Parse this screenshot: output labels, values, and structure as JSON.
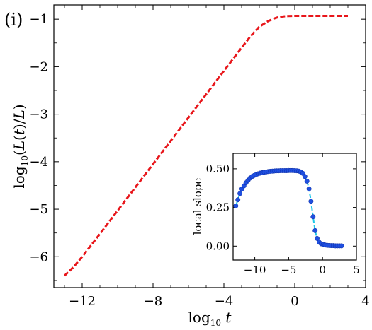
{
  "panel_label": "(i)",
  "chart_data": [
    {
      "type": "line",
      "name": "main",
      "xlabel": "log10 t",
      "ylabel": "log10(L(t)/L)",
      "xlim": [
        -13.6,
        4
      ],
      "ylim": [
        -6.65,
        -0.7
      ],
      "xticks": [
        -12,
        -8,
        -4,
        0,
        4
      ],
      "yticks": [
        -6,
        -5,
        -4,
        -3,
        -2,
        -1
      ],
      "xtick_labels": [
        "−12",
        "−8",
        "−4",
        "0",
        "4"
      ],
      "ytick_labels": [
        "−6",
        "−5",
        "−4",
        "−3",
        "−2",
        "−1"
      ],
      "grid": false,
      "series": [
        {
          "color": "#e8161b",
          "style": "dashed",
          "x": [
            -13.0,
            -12.5,
            -12.0,
            -11.0,
            -10.0,
            -9.0,
            -8.0,
            -7.0,
            -6.0,
            -5.0,
            -4.0,
            -3.0,
            -2.5,
            -2.0,
            -1.5,
            -1.2,
            -1.0,
            -0.8,
            -0.6,
            -0.4,
            -0.2,
            0.0,
            0.5,
            1.0,
            2.0,
            3.0
          ],
          "y": [
            -6.4,
            -6.22,
            -6.0,
            -5.52,
            -5.03,
            -4.54,
            -4.05,
            -3.56,
            -3.07,
            -2.58,
            -2.09,
            -1.6,
            -1.36,
            -1.16,
            -1.04,
            -0.99,
            -0.965,
            -0.95,
            -0.94,
            -0.935,
            -0.932,
            -0.93,
            -0.93,
            -0.93,
            -0.93,
            -0.93
          ]
        }
      ]
    },
    {
      "type": "line",
      "name": "inset",
      "xlabel": "",
      "ylabel": "local slope",
      "xlim": [
        -13.2,
        5
      ],
      "ylim": [
        -0.09,
        0.6
      ],
      "xticks": [
        -10,
        -5,
        0,
        5
      ],
      "yticks": [
        0.0,
        0.25,
        0.5
      ],
      "xtick_labels": [
        "−10",
        "−5",
        "0",
        "5"
      ],
      "ytick_labels": [
        "0.00",
        "0.25",
        "0.50"
      ],
      "grid": false,
      "series": [
        {
          "line_color": "#1ec8e8",
          "marker_color": "#1f4fe0",
          "style": "dashed-with-markers",
          "x": [
            -12.8,
            -12.5,
            -12.2,
            -11.9,
            -11.6,
            -11.3,
            -11.0,
            -10.7,
            -10.4,
            -10.1,
            -9.8,
            -9.5,
            -9.2,
            -8.9,
            -8.6,
            -8.3,
            -8.0,
            -7.7,
            -7.4,
            -7.1,
            -6.8,
            -6.5,
            -6.2,
            -5.9,
            -5.6,
            -5.3,
            -5.0,
            -4.7,
            -4.4,
            -4.1,
            -3.8,
            -3.5,
            -3.2,
            -2.9,
            -2.6,
            -2.3,
            -2.0,
            -1.7,
            -1.4,
            -1.1,
            -0.8,
            -0.5,
            -0.2,
            0.1,
            0.4,
            0.7,
            1.0,
            1.3,
            1.6,
            1.9,
            2.2,
            2.5,
            2.8
          ],
          "y": [
            0.26,
            0.3,
            0.34,
            0.37,
            0.39,
            0.41,
            0.425,
            0.44,
            0.45,
            0.457,
            0.463,
            0.468,
            0.472,
            0.475,
            0.478,
            0.48,
            0.482,
            0.484,
            0.485,
            0.486,
            0.487,
            0.487,
            0.488,
            0.488,
            0.488,
            0.488,
            0.489,
            0.489,
            0.489,
            0.488,
            0.487,
            0.485,
            0.48,
            0.47,
            0.45,
            0.42,
            0.37,
            0.29,
            0.19,
            0.1,
            0.05,
            0.025,
            0.015,
            0.01,
            0.007,
            0.005,
            0.004,
            0.003,
            0.003,
            0.002,
            0.002,
            0.002,
            0.002
          ]
        }
      ]
    }
  ]
}
